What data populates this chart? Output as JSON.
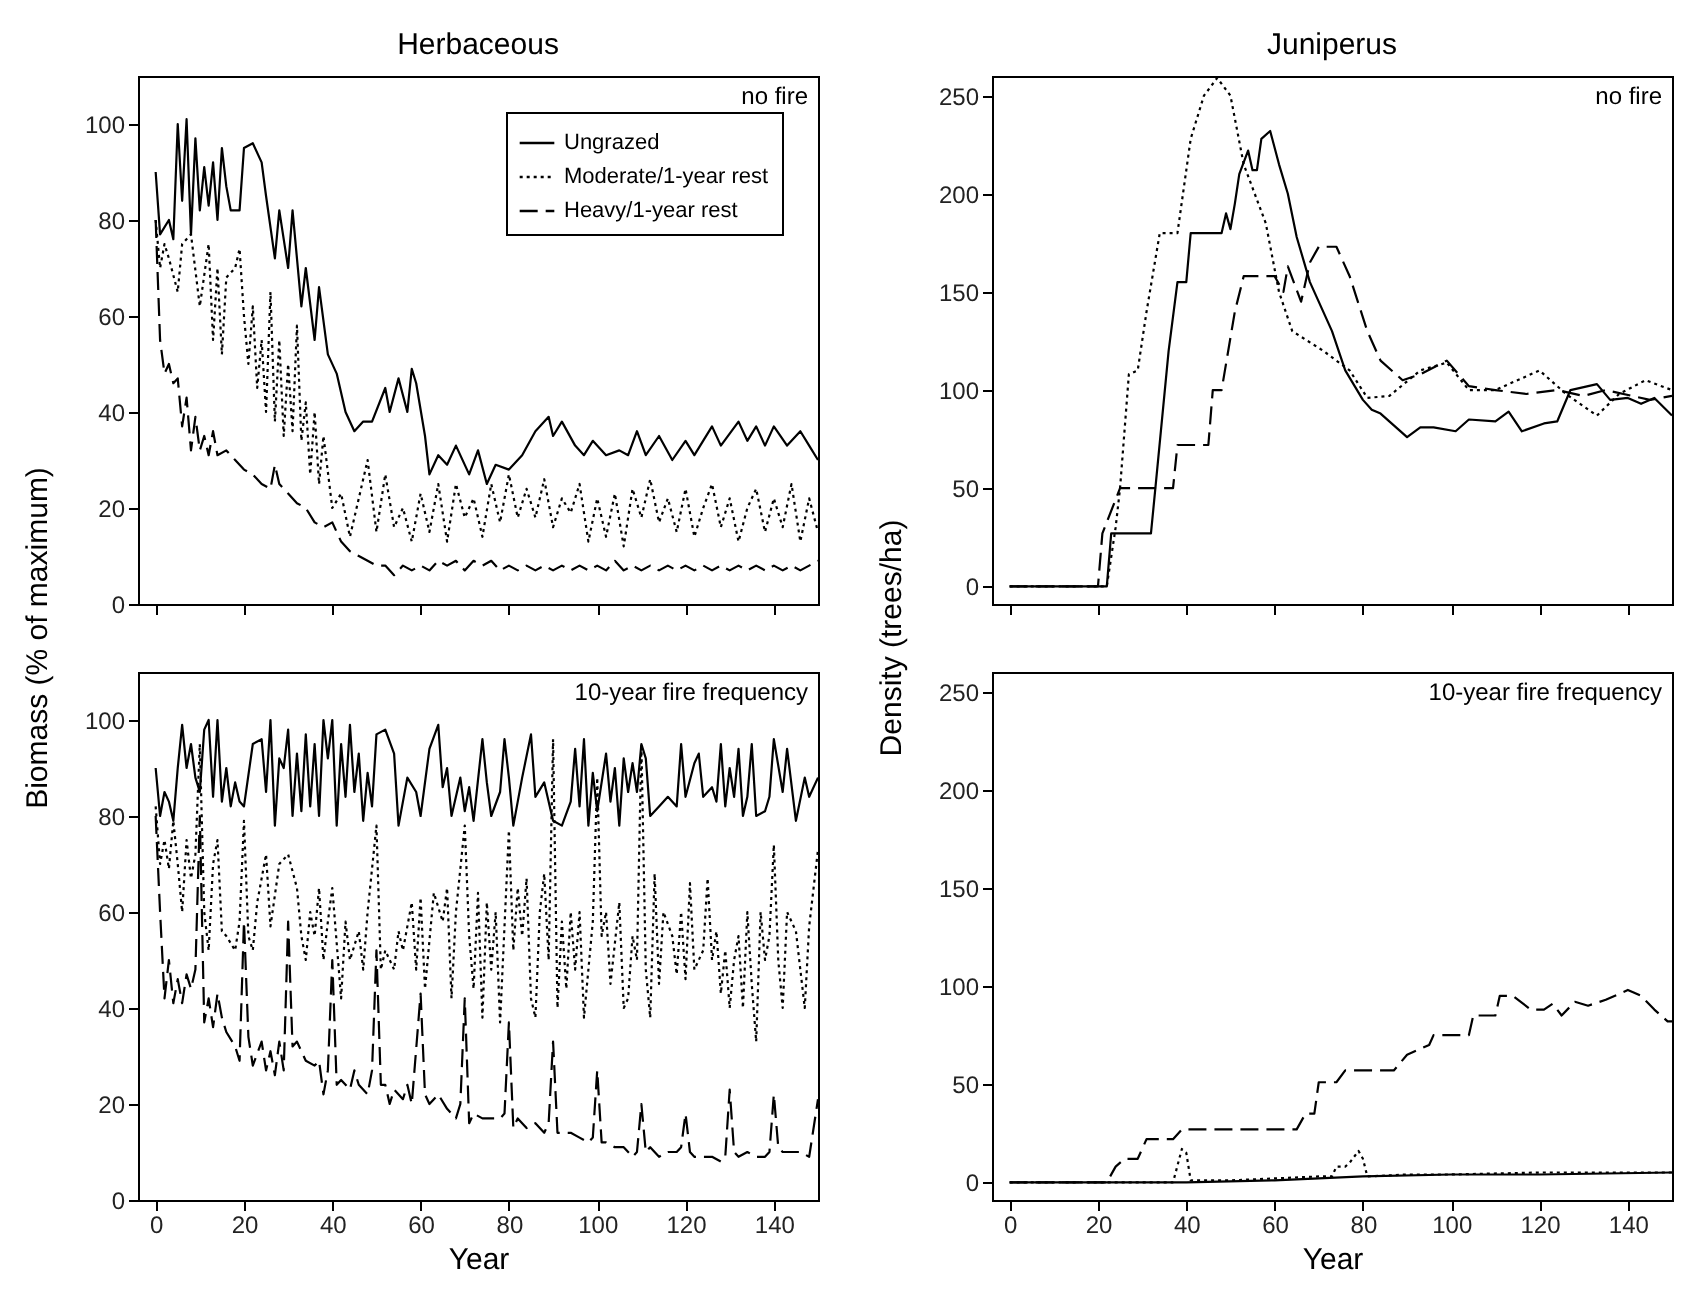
{
  "chart_data": [
    {
      "type": "line",
      "title": "Herbaceous",
      "ylabel": "Biomass (% of maximum)",
      "annotations": [
        "no fire"
      ],
      "xlim": [
        -4,
        150
      ],
      "xticks": [
        0,
        20,
        40,
        60,
        80,
        100,
        120,
        140
      ],
      "ylim": [
        0,
        110
      ],
      "yticks": [
        0,
        20,
        40,
        60,
        80,
        100
      ],
      "tick_labels": "y",
      "legend": "top right",
      "series": [
        {
          "name": "Ungrazed",
          "color": "#000000",
          "line_style": "solid",
          "x": [
            0,
            1,
            3,
            4,
            5,
            6,
            7,
            8,
            9,
            10,
            11,
            12,
            13,
            14,
            15,
            16,
            17,
            19,
            20,
            22,
            24,
            25,
            27,
            28,
            30,
            31,
            33,
            34,
            36,
            37,
            39,
            41,
            43,
            45,
            47,
            49,
            52,
            53,
            55,
            57,
            58,
            59,
            61,
            62,
            64,
            66,
            68,
            71,
            73,
            75,
            77,
            80,
            83,
            86,
            89,
            90,
            92,
            95,
            97,
            99,
            102,
            105,
            107,
            109,
            111,
            114,
            117,
            120,
            122,
            126,
            128,
            132,
            134,
            136,
            138,
            140,
            143,
            146,
            148,
            150
          ],
          "values": [
            90,
            77,
            80,
            76,
            100,
            84,
            101,
            77,
            97,
            82,
            91,
            83,
            92,
            80,
            95,
            87,
            82,
            82,
            95,
            96,
            92,
            85,
            72,
            82,
            70,
            82,
            62,
            70,
            55,
            66,
            52,
            48,
            40,
            36,
            38,
            38,
            45,
            40,
            47,
            40,
            49,
            46,
            35,
            27,
            31,
            29,
            33,
            27,
            32,
            25,
            29,
            28,
            31,
            36,
            39,
            35,
            38,
            33,
            31,
            34,
            31,
            32,
            31,
            36,
            31,
            35,
            30,
            34,
            31,
            37,
            33,
            38,
            34,
            37,
            33,
            37,
            33,
            36,
            33,
            30
          ]
        },
        {
          "name": "Moderate/1-year rest",
          "color": "#000000",
          "line_style": "dotted",
          "x": [
            0,
            1,
            2,
            3,
            5,
            6,
            8,
            10,
            12,
            13,
            14,
            15,
            16,
            18,
            19,
            20,
            21,
            22,
            23,
            24,
            25,
            26,
            27,
            28,
            29,
            30,
            31,
            32,
            33,
            34,
            35,
            36,
            37,
            38,
            40,
            42,
            44,
            46,
            48,
            50,
            52,
            54,
            56,
            58,
            60,
            62,
            64,
            66,
            68,
            70,
            72,
            74,
            76,
            78,
            80,
            82,
            84,
            86,
            88,
            90,
            92,
            94,
            96,
            98,
            100,
            102,
            104,
            106,
            108,
            110,
            112,
            114,
            116,
            118,
            120,
            122,
            124,
            126,
            128,
            130,
            132,
            134,
            136,
            138,
            140,
            142,
            144,
            146,
            148,
            150
          ],
          "values": [
            80,
            70,
            75,
            72,
            65,
            75,
            77,
            62,
            75,
            55,
            70,
            52,
            68,
            70,
            74,
            60,
            50,
            62,
            45,
            55,
            40,
            65,
            38,
            55,
            35,
            50,
            36,
            58,
            34,
            42,
            27,
            40,
            25,
            35,
            20,
            23,
            14,
            22,
            30,
            15,
            27,
            16,
            20,
            13,
            23,
            15,
            25,
            13,
            25,
            18,
            22,
            14,
            25,
            17,
            27,
            18,
            24,
            18,
            26,
            16,
            22,
            19,
            25,
            13,
            22,
            14,
            23,
            12,
            24,
            18,
            26,
            17,
            22,
            15,
            24,
            14,
            20,
            25,
            16,
            22,
            13,
            20,
            24,
            15,
            22,
            16,
            25,
            13,
            22,
            15
          ]
        },
        {
          "name": "Heavy/1-year rest",
          "color": "#000000",
          "line_style": "dashed",
          "x": [
            0,
            1,
            2,
            3,
            4,
            5,
            6,
            7,
            8,
            9,
            10,
            11,
            12,
            13,
            14,
            16,
            18,
            20,
            22,
            24,
            26,
            27,
            28,
            30,
            32,
            34,
            36,
            38,
            40,
            42,
            44,
            46,
            48,
            50,
            52,
            54,
            56,
            58,
            60,
            62,
            64,
            66,
            68,
            70,
            72,
            74,
            76,
            78,
            80,
            82,
            84,
            86,
            88,
            90,
            92,
            94,
            96,
            98,
            100,
            102,
            104,
            106,
            108,
            110,
            112,
            114,
            116,
            118,
            120,
            122,
            124,
            126,
            128,
            130,
            132,
            134,
            136,
            138,
            140,
            142,
            144,
            146,
            148,
            150
          ],
          "values": [
            80,
            55,
            48,
            50,
            46,
            47,
            37,
            43,
            32,
            39,
            32,
            35,
            31,
            36,
            31,
            32,
            30,
            28,
            27,
            25,
            24,
            29,
            25,
            23,
            21,
            20,
            17,
            16,
            17,
            13,
            11,
            10,
            9,
            8,
            8,
            6,
            8,
            7,
            8,
            7,
            9,
            8,
            9,
            7,
            9,
            8,
            9,
            7,
            8,
            7,
            8,
            7,
            8,
            7,
            8,
            7,
            8,
            7,
            8,
            7,
            9,
            7,
            8,
            7,
            8,
            7,
            8,
            7,
            8,
            7,
            8,
            7,
            8,
            7,
            8,
            7,
            8,
            7,
            8,
            7,
            8,
            7,
            8,
            9
          ]
        }
      ]
    },
    {
      "type": "line",
      "title": "Juniperus",
      "ylabel": "Density (trees/ha)",
      "annotations": [
        "no fire"
      ],
      "xlim": [
        -4,
        150
      ],
      "xticks": [
        0,
        20,
        40,
        60,
        80,
        100,
        120,
        140
      ],
      "ylim": [
        -9,
        260
      ],
      "yticks": [
        0,
        50,
        100,
        150,
        200,
        250
      ],
      "tick_labels": "y",
      "series": [
        {
          "color": "#000000",
          "line_style": "solid",
          "x": [
            0,
            22,
            23,
            32,
            33,
            36,
            38,
            40,
            41,
            48,
            49,
            50,
            51,
            52,
            54,
            55,
            56,
            57,
            59,
            61,
            63,
            65,
            68,
            73,
            76,
            80,
            82,
            84,
            87,
            90,
            93,
            96,
            101,
            104,
            110,
            113,
            116,
            121,
            124,
            127,
            133,
            136,
            140,
            143,
            146,
            150
          ],
          "values": [
            0,
            0,
            27,
            27,
            50,
            120,
            155,
            155,
            180,
            180,
            190,
            182,
            195,
            210,
            222,
            212,
            212,
            228,
            232,
            215,
            200,
            178,
            155,
            130,
            110,
            95,
            90,
            88,
            82,
            76,
            81,
            81,
            79,
            85,
            84,
            89,
            79,
            83,
            84,
            100,
            103,
            95,
            96,
            93,
            96,
            87
          ]
        },
        {
          "color": "#000000",
          "line_style": "dotted",
          "x": [
            0,
            22,
            24,
            25,
            27,
            29,
            31,
            34,
            38,
            41,
            44,
            47,
            50,
            53,
            58,
            61,
            64,
            71,
            77,
            81,
            86,
            93,
            99,
            104,
            110,
            120,
            126,
            133,
            138,
            144,
            150
          ],
          "values": [
            0,
            0,
            30,
            50,
            108,
            110,
            140,
            180,
            180,
            228,
            250,
            259,
            250,
            215,
            185,
            150,
            130,
            120,
            110,
            96,
            97,
            110,
            114,
            100,
            100,
            110,
            98,
            87,
            98,
            105,
            100
          ]
        },
        {
          "color": "#000000",
          "line_style": "dashed",
          "x": [
            0,
            20,
            21,
            25,
            37,
            38,
            45,
            46,
            48,
            51,
            53,
            60,
            62,
            63,
            66,
            68,
            70,
            74,
            77,
            81,
            84,
            89,
            93,
            99,
            104,
            110,
            117,
            124,
            130,
            135,
            145,
            150
          ],
          "values": [
            0,
            0,
            27,
            50,
            50,
            72,
            72,
            100,
            100,
            140,
            158,
            158,
            150,
            163,
            145,
            165,
            173,
            173,
            158,
            130,
            115,
            105,
            108,
            115,
            102,
            100,
            98,
            100,
            97,
            100,
            95,
            97
          ]
        }
      ]
    },
    {
      "type": "line",
      "xlabel": "Year",
      "annotations": [
        "10-year fire frequency"
      ],
      "xlim": [
        -4,
        150
      ],
      "xticks": [
        0,
        20,
        40,
        60,
        80,
        100,
        120,
        140
      ],
      "ylim": [
        0,
        110
      ],
      "yticks": [
        0,
        20,
        40,
        60,
        80,
        100
      ],
      "series": [
        {
          "color": "#000000",
          "line_style": "solid",
          "x": [
            0,
            1,
            2,
            3,
            4,
            5,
            6,
            7,
            8,
            9,
            10,
            11,
            12,
            13,
            14,
            15,
            16,
            17,
            18,
            19,
            20,
            22,
            24,
            25,
            26,
            27,
            28,
            29,
            30,
            31,
            32,
            33,
            34,
            35,
            36,
            37,
            38,
            39,
            40,
            41,
            42,
            43,
            44,
            45,
            46,
            47,
            48,
            49,
            50,
            52,
            54,
            55,
            57,
            59,
            60,
            62,
            64,
            65,
            66,
            67,
            69,
            70,
            71,
            72,
            74,
            75,
            76,
            78,
            79,
            80,
            81,
            83,
            85,
            86,
            88,
            90,
            92,
            94,
            95,
            96,
            97,
            98,
            99,
            100,
            102,
            103,
            104,
            105,
            106,
            107,
            108,
            109,
            110,
            111,
            112,
            114,
            116,
            118,
            119,
            120,
            122,
            123,
            124,
            126,
            127,
            128,
            129,
            130,
            131,
            132,
            133,
            134,
            135,
            136,
            138,
            139,
            140,
            142,
            143,
            145,
            147,
            148,
            150
          ],
          "values": [
            90,
            80,
            85,
            83,
            79,
            90,
            99,
            90,
            95,
            88,
            85,
            98,
            100,
            84,
            100,
            83,
            90,
            82,
            87,
            83,
            82,
            95,
            96,
            85,
            100,
            78,
            92,
            90,
            98,
            80,
            93,
            81,
            97,
            82,
            95,
            80,
            100,
            92,
            100,
            78,
            95,
            84,
            99,
            85,
            93,
            79,
            89,
            82,
            97,
            98,
            93,
            78,
            88,
            85,
            80,
            94,
            99,
            86,
            90,
            80,
            88,
            81,
            86,
            79,
            96,
            87,
            80,
            85,
            96,
            88,
            78,
            88,
            97,
            84,
            87,
            79,
            78,
            83,
            94,
            82,
            96,
            78,
            89,
            81,
            93,
            83,
            90,
            78,
            92,
            85,
            91,
            85,
            95,
            92,
            80,
            82,
            84,
            82,
            95,
            84,
            91,
            93,
            84,
            86,
            83,
            95,
            82,
            90,
            84,
            94,
            80,
            84,
            95,
            80,
            81,
            84,
            96,
            85,
            94,
            79,
            88,
            84,
            88
          ]
        },
        {
          "color": "#000000",
          "line_style": "dotted",
          "x": [
            0,
            1,
            2,
            3,
            4,
            5,
            6,
            7,
            8,
            9,
            10,
            11,
            12,
            13,
            14,
            15,
            16,
            18,
            19,
            20,
            21,
            22,
            23,
            25,
            26,
            28,
            30,
            32,
            33,
            34,
            35,
            36,
            37,
            38,
            39,
            40,
            42,
            43,
            44,
            46,
            47,
            48,
            50,
            51,
            52,
            54,
            55,
            56,
            58,
            59,
            60,
            61,
            63,
            65,
            66,
            67,
            68,
            70,
            71,
            72,
            73,
            74,
            75,
            76,
            77,
            78,
            80,
            81,
            82,
            83,
            84,
            85,
            86,
            87,
            88,
            89,
            90,
            91,
            92,
            93,
            94,
            95,
            96,
            97,
            99,
            100,
            101,
            102,
            103,
            105,
            106,
            107,
            108,
            109,
            110,
            111,
            112,
            113,
            114,
            115,
            117,
            118,
            119,
            120,
            121,
            122,
            124,
            125,
            126,
            127,
            128,
            129,
            130,
            131,
            132,
            133,
            134,
            135,
            136,
            137,
            138,
            139,
            140,
            141,
            142,
            143,
            145,
            147,
            148,
            150
          ],
          "values": [
            82,
            70,
            75,
            69,
            79,
            70,
            60,
            75,
            67,
            72,
            95,
            60,
            52,
            70,
            75,
            56,
            55,
            52,
            58,
            79,
            55,
            52,
            62,
            72,
            57,
            70,
            72,
            65,
            55,
            50,
            60,
            55,
            65,
            50,
            58,
            65,
            42,
            58,
            50,
            56,
            48,
            60,
            78,
            48,
            52,
            48,
            56,
            52,
            62,
            48,
            63,
            44,
            64,
            58,
            65,
            42,
            60,
            78,
            55,
            44,
            64,
            38,
            62,
            48,
            60,
            37,
            77,
            52,
            65,
            55,
            67,
            42,
            38,
            60,
            68,
            50,
            96,
            40,
            58,
            44,
            60,
            48,
            60,
            38,
            58,
            88,
            55,
            60,
            45,
            62,
            40,
            42,
            55,
            50,
            95,
            48,
            38,
            68,
            45,
            60,
            55,
            47,
            60,
            46,
            66,
            48,
            52,
            67,
            50,
            56,
            43,
            52,
            40,
            50,
            55,
            40,
            60,
            45,
            33,
            60,
            50,
            55,
            74,
            50,
            40,
            60,
            56,
            40,
            57,
            73
          ]
        },
        {
          "color": "#000000",
          "line_style": "dashed",
          "x": [
            0,
            1,
            2,
            3,
            4,
            5,
            6,
            7,
            8,
            9,
            10,
            11,
            12,
            13,
            14,
            15,
            16,
            18,
            19,
            20,
            21,
            22,
            24,
            25,
            26,
            27,
            28,
            29,
            30,
            31,
            32,
            34,
            36,
            37,
            38,
            39,
            40,
            41,
            42,
            44,
            45,
            46,
            48,
            49,
            50,
            51,
            52,
            53,
            54,
            56,
            57,
            58,
            60,
            61,
            62,
            64,
            66,
            68,
            69,
            70,
            71,
            72,
            74,
            76,
            78,
            79,
            80,
            81,
            82,
            84,
            86,
            88,
            89,
            90,
            91,
            92,
            94,
            96,
            98,
            99,
            100,
            101,
            102,
            104,
            106,
            108,
            109,
            110,
            111,
            112,
            114,
            116,
            118,
            119,
            120,
            121,
            122,
            124,
            126,
            128,
            129,
            130,
            131,
            132,
            134,
            136,
            138,
            139,
            140,
            141,
            142,
            144,
            146,
            148,
            150
          ],
          "values": [
            80,
            60,
            42,
            50,
            41,
            46,
            41,
            47,
            44,
            48,
            80,
            37,
            42,
            36,
            43,
            38,
            35,
            32,
            29,
            58,
            34,
            28,
            33,
            27,
            31,
            26,
            33,
            27,
            58,
            32,
            33,
            29,
            28,
            29,
            22,
            27,
            50,
            24,
            25,
            23,
            27,
            24,
            22,
            27,
            52,
            24,
            24,
            20,
            23,
            21,
            24,
            20,
            43,
            22,
            20,
            22,
            19,
            17,
            20,
            42,
            16,
            18,
            17,
            17,
            17,
            18,
            37,
            15,
            17,
            15,
            16,
            14,
            16,
            33,
            14,
            14,
            14,
            13,
            12,
            13,
            27,
            12,
            12,
            11,
            11,
            9,
            10,
            20,
            10,
            11,
            9,
            10,
            10,
            11,
            18,
            10,
            9,
            9,
            9,
            8,
            9,
            23,
            10,
            9,
            10,
            9,
            9,
            10,
            22,
            11,
            10,
            10,
            10,
            9,
            21
          ]
        }
      ]
    },
    {
      "type": "line",
      "xlabel": "Year",
      "annotations": [
        "10-year fire frequency"
      ],
      "xlim": [
        -4,
        150
      ],
      "xticks": [
        0,
        20,
        40,
        60,
        80,
        100,
        120,
        140
      ],
      "ylim": [
        -9,
        260
      ],
      "yticks": [
        0,
        50,
        100,
        150,
        200,
        250
      ],
      "series": [
        {
          "color": "#000000",
          "line_style": "solid",
          "x": [
            0,
            40,
            60,
            80,
            100,
            120,
            150
          ],
          "values": [
            0,
            0,
            1,
            3,
            4,
            4,
            5
          ]
        },
        {
          "color": "#000000",
          "line_style": "dotted",
          "x": [
            0,
            36,
            37,
            39,
            40,
            41,
            50,
            60,
            70,
            73,
            74,
            76,
            77,
            79,
            80,
            81,
            90,
            100,
            120,
            140,
            150
          ],
          "values": [
            0,
            0,
            0,
            17,
            15,
            1,
            1,
            2,
            3,
            3,
            8,
            8,
            10,
            16,
            12,
            3,
            4,
            4,
            5,
            5,
            5
          ]
        },
        {
          "color": "#000000",
          "line_style": "dashed",
          "x": [
            0,
            22,
            24,
            26,
            29,
            31,
            37,
            39,
            65,
            67,
            69,
            70,
            74,
            76,
            87,
            90,
            95,
            96,
            104,
            105,
            110,
            111,
            114,
            118,
            121,
            123,
            125,
            128,
            131,
            135,
            140,
            143,
            146,
            149,
            150
          ],
          "values": [
            0,
            0,
            8,
            12,
            12,
            22,
            22,
            27,
            27,
            35,
            35,
            51,
            51,
            57,
            57,
            65,
            70,
            75,
            75,
            85,
            85,
            95,
            95,
            88,
            88,
            91,
            85,
            92,
            90,
            93,
            98,
            95,
            88,
            82,
            82
          ]
        }
      ]
    }
  ]
}
